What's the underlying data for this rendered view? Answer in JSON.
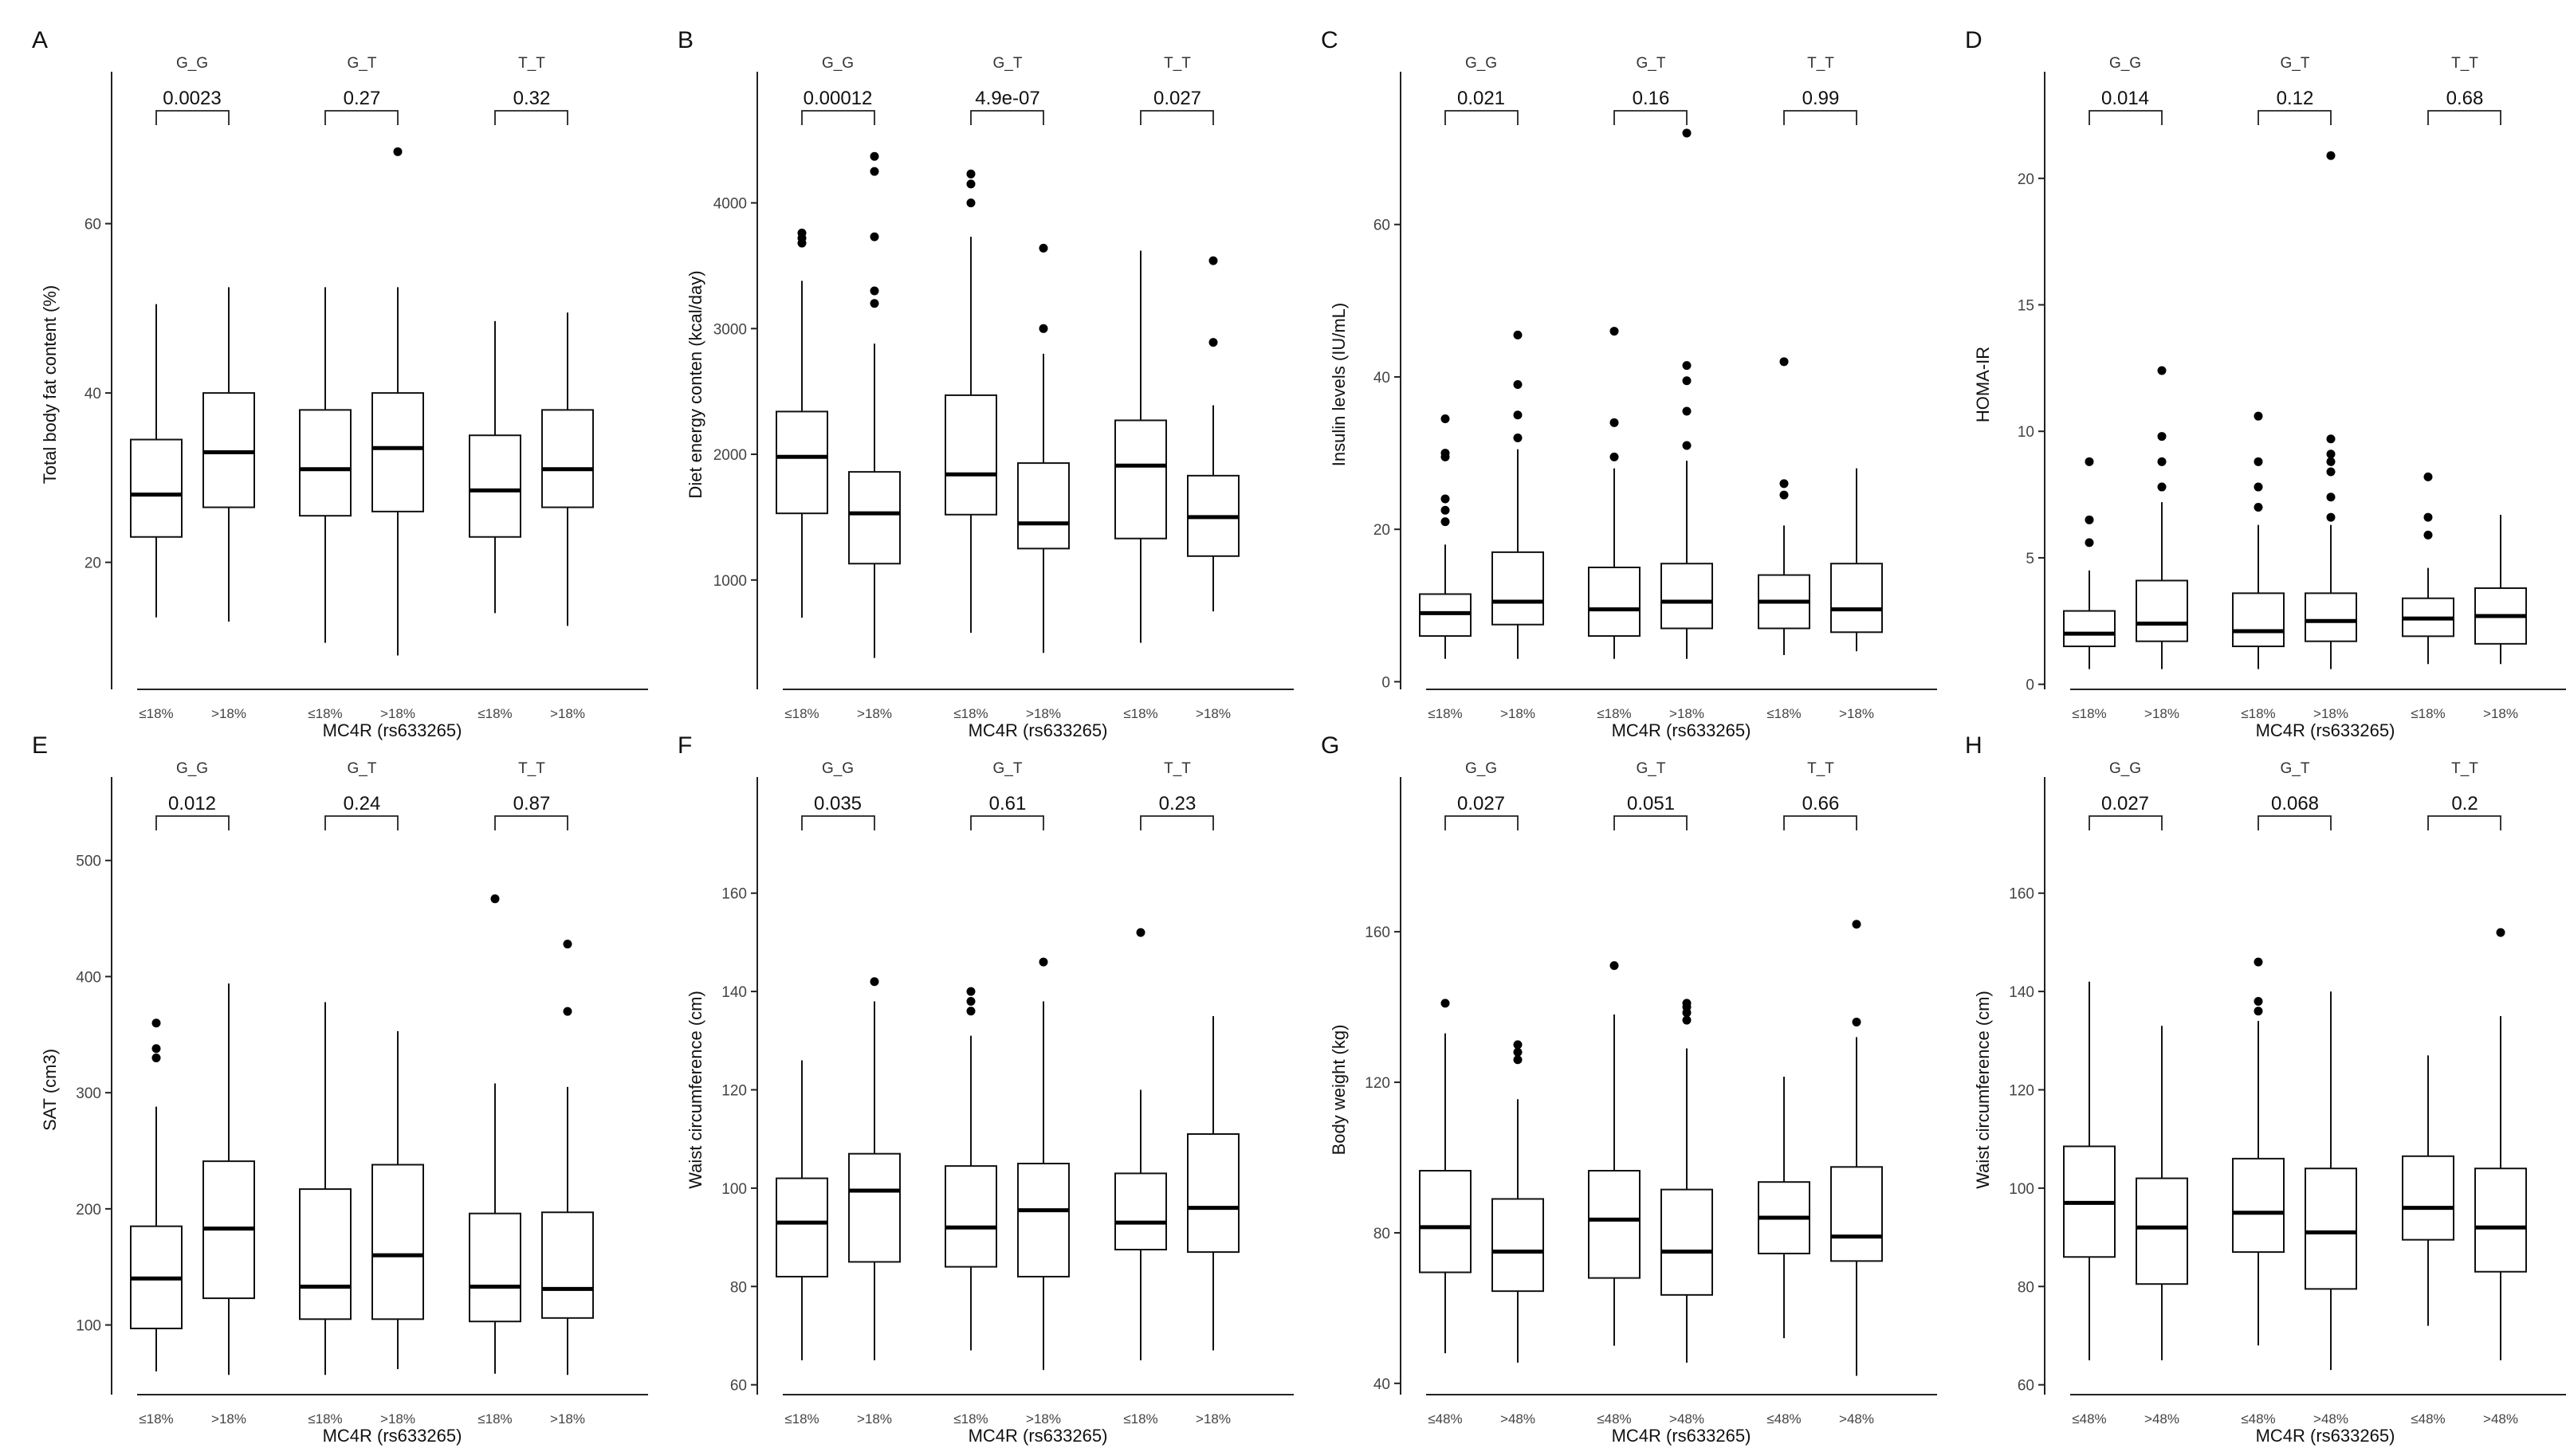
{
  "figure": {
    "xlabel": "MC4R (rs633265)",
    "groups": [
      "G_G",
      "G_T",
      "T_T"
    ]
  },
  "chart_data": [
    {
      "panel": "A",
      "type": "box",
      "ylabel": "Total body fat content (%)",
      "ylim": [
        5,
        77
      ],
      "yticks": [
        20,
        40,
        60
      ],
      "xticks": [
        "≤18%",
        ">18%"
      ],
      "pvalues": [
        "0.0023",
        "0.27",
        "0.32"
      ],
      "boxes": [
        {
          "min": 13.5,
          "q1": 23,
          "median": 28,
          "q3": 34.5,
          "max": 50.5,
          "outliers": []
        },
        {
          "min": 13,
          "q1": 26.5,
          "median": 33,
          "q3": 40,
          "max": 52.5,
          "outliers": []
        },
        {
          "min": 10.5,
          "q1": 25.5,
          "median": 31,
          "q3": 38,
          "max": 52.5,
          "outliers": []
        },
        {
          "min": 9,
          "q1": 26,
          "median": 33.5,
          "q3": 40,
          "max": 52.5,
          "outliers": [
            68.5
          ]
        },
        {
          "min": 14,
          "q1": 23,
          "median": 28.5,
          "q3": 35,
          "max": 48.5,
          "outliers": []
        },
        {
          "min": 12.5,
          "q1": 26.5,
          "median": 31,
          "q3": 38,
          "max": 49.5,
          "outliers": []
        }
      ]
    },
    {
      "panel": "B",
      "type": "box",
      "ylabel": "Diet energy conten (kcal/day)",
      "ylim": [
        130,
        4980
      ],
      "yticks": [
        1000,
        2000,
        3000,
        4000
      ],
      "xticks": [
        "≤18%",
        ">18%"
      ],
      "pvalues": [
        "0.00012",
        "4.9e-07",
        "0.027"
      ],
      "boxes": [
        {
          "min": 700,
          "q1": 1530,
          "median": 1980,
          "q3": 2340,
          "max": 3380,
          "outliers": [
            3680,
            3720,
            3760
          ]
        },
        {
          "min": 380,
          "q1": 1130,
          "median": 1530,
          "q3": 1860,
          "max": 2880,
          "outliers": [
            3200,
            3300,
            3730,
            4250,
            4370
          ]
        },
        {
          "min": 580,
          "q1": 1520,
          "median": 1840,
          "q3": 2470,
          "max": 3730,
          "outliers": [
            4000,
            4150,
            4230
          ]
        },
        {
          "min": 420,
          "q1": 1250,
          "median": 1450,
          "q3": 1930,
          "max": 2800,
          "outliers": [
            3000,
            3640
          ]
        },
        {
          "min": 500,
          "q1": 1330,
          "median": 1910,
          "q3": 2270,
          "max": 3620,
          "outliers": []
        },
        {
          "min": 750,
          "q1": 1190,
          "median": 1500,
          "q3": 1830,
          "max": 2390,
          "outliers": [
            2890,
            3540
          ]
        }
      ]
    },
    {
      "panel": "C",
      "type": "box",
      "ylabel": "Insulin levels (IU/mL)",
      "ylim": [
        -1,
        79
      ],
      "yticks": [
        0,
        20,
        40,
        60
      ],
      "xticks": [
        "≤18%",
        ">18%"
      ],
      "pvalues": [
        "0.021",
        "0.16",
        "0.99"
      ],
      "boxes": [
        {
          "min": 3,
          "q1": 6,
          "median": 9,
          "q3": 11.5,
          "max": 18,
          "outliers": [
            21,
            22.5,
            24,
            29.5,
            30,
            34.5
          ]
        },
        {
          "min": 3,
          "q1": 7.5,
          "median": 10.5,
          "q3": 17,
          "max": 30.5,
          "outliers": [
            32,
            35,
            39,
            45.5
          ]
        },
        {
          "min": 3,
          "q1": 6,
          "median": 9.5,
          "q3": 15,
          "max": 28,
          "outliers": [
            29.5,
            34,
            46
          ]
        },
        {
          "min": 3,
          "q1": 7,
          "median": 10.5,
          "q3": 15.5,
          "max": 29,
          "outliers": [
            31,
            35.5,
            39.5,
            41.5,
            72
          ]
        },
        {
          "min": 3.5,
          "q1": 7,
          "median": 10.5,
          "q3": 14,
          "max": 20.5,
          "outliers": [
            24.5,
            26,
            42
          ]
        },
        {
          "min": 4,
          "q1": 6.5,
          "median": 9.5,
          "q3": 15.5,
          "max": 28,
          "outliers": []
        }
      ]
    },
    {
      "panel": "D",
      "type": "box",
      "ylabel": "HOMA-IR",
      "ylim": [
        -0.2,
        23.9
      ],
      "yticks": [
        0,
        5,
        10,
        15,
        20
      ],
      "xticks": [
        "≤18%",
        ">18%"
      ],
      "pvalues": [
        "0.014",
        "0.12",
        "0.68"
      ],
      "boxes": [
        {
          "min": 0.6,
          "q1": 1.5,
          "median": 2,
          "q3": 2.9,
          "max": 4.5,
          "outliers": [
            5.6,
            6.5,
            8.8
          ]
        },
        {
          "min": 0.6,
          "q1": 1.7,
          "median": 2.4,
          "q3": 4.1,
          "max": 7.2,
          "outliers": [
            7.8,
            8.8,
            9.8,
            12.4
          ]
        },
        {
          "min": 0.6,
          "q1": 1.5,
          "median": 2.1,
          "q3": 3.6,
          "max": 6.3,
          "outliers": [
            7,
            7.8,
            8.8,
            10.6
          ]
        },
        {
          "min": 0.6,
          "q1": 1.7,
          "median": 2.5,
          "q3": 3.6,
          "max": 6.3,
          "outliers": [
            6.6,
            7.4,
            8.4,
            8.8,
            9.1,
            9.7,
            20.9
          ]
        },
        {
          "min": 0.8,
          "q1": 1.9,
          "median": 2.6,
          "q3": 3.4,
          "max": 4.6,
          "outliers": [
            5.9,
            6.6,
            8.2
          ]
        },
        {
          "min": 0.8,
          "q1": 1.6,
          "median": 2.7,
          "q3": 3.8,
          "max": 6.7,
          "outliers": []
        }
      ]
    },
    {
      "panel": "E",
      "type": "box",
      "ylabel": "SAT (cm3)",
      "ylim": [
        40,
        565
      ],
      "yticks": [
        100,
        200,
        300,
        400,
        500
      ],
      "xticks": [
        "≤18%",
        ">18%"
      ],
      "pvalues": [
        "0.012",
        "0.24",
        "0.87"
      ],
      "boxes": [
        {
          "min": 60,
          "q1": 97,
          "median": 140,
          "q3": 185,
          "max": 288,
          "outliers": [
            330,
            338,
            360
          ]
        },
        {
          "min": 57,
          "q1": 123,
          "median": 183,
          "q3": 241,
          "max": 394,
          "outliers": []
        },
        {
          "min": 57,
          "q1": 105,
          "median": 133,
          "q3": 217,
          "max": 378,
          "outliers": []
        },
        {
          "min": 62,
          "q1": 105,
          "median": 160,
          "q3": 238,
          "max": 353,
          "outliers": []
        },
        {
          "min": 58,
          "q1": 103,
          "median": 133,
          "q3": 196,
          "max": 308,
          "outliers": [
            467
          ]
        },
        {
          "min": 57,
          "q1": 106,
          "median": 131,
          "q3": 197,
          "max": 305,
          "outliers": [
            370,
            428
          ]
        }
      ]
    },
    {
      "panel": "F",
      "type": "box",
      "ylabel": "Waist circumference (cm)",
      "ylim": [
        58,
        182
      ],
      "yticks": [
        60,
        80,
        100,
        120,
        140,
        160
      ],
      "xticks": [
        "≤18%",
        ">18%"
      ],
      "pvalues": [
        "0.035",
        "0.61",
        "0.23"
      ],
      "boxes": [
        {
          "min": 65,
          "q1": 82,
          "median": 93,
          "q3": 102,
          "max": 126,
          "outliers": []
        },
        {
          "min": 65,
          "q1": 85,
          "median": 99.5,
          "q3": 107,
          "max": 138,
          "outliers": [
            142
          ]
        },
        {
          "min": 67,
          "q1": 84,
          "median": 92,
          "q3": 104.5,
          "max": 131,
          "outliers": [
            136,
            138,
            140
          ]
        },
        {
          "min": 63,
          "q1": 82,
          "median": 95.5,
          "q3": 105,
          "max": 138,
          "outliers": [
            146
          ]
        },
        {
          "min": 65,
          "q1": 87.5,
          "median": 93,
          "q3": 103,
          "max": 120,
          "outliers": [
            152
          ]
        },
        {
          "min": 67,
          "q1": 87,
          "median": 96,
          "q3": 111,
          "max": 135,
          "outliers": []
        }
      ]
    },
    {
      "panel": "G",
      "type": "box",
      "ylabel": "Body weight (kg)",
      "ylim": [
        37,
        199
      ],
      "yticks": [
        40,
        80,
        120,
        160
      ],
      "xticks": [
        "≤48%",
        ">48%"
      ],
      "pvalues": [
        "0.027",
        "0.051",
        "0.66"
      ],
      "boxes": [
        {
          "min": 48,
          "q1": 69.5,
          "median": 81.5,
          "q3": 96.5,
          "max": 133,
          "outliers": [
            141
          ]
        },
        {
          "min": 45.5,
          "q1": 64.5,
          "median": 75,
          "q3": 89,
          "max": 115.5,
          "outliers": [
            126,
            128,
            130
          ]
        },
        {
          "min": 50,
          "q1": 68,
          "median": 83.5,
          "q3": 96.5,
          "max": 138,
          "outliers": [
            151
          ]
        },
        {
          "min": 45.5,
          "q1": 63.5,
          "median": 75,
          "q3": 91.5,
          "max": 129,
          "outliers": [
            136.5,
            138.5,
            140,
            141
          ]
        },
        {
          "min": 52,
          "q1": 74.5,
          "median": 84,
          "q3": 93.5,
          "max": 121.5,
          "outliers": []
        },
        {
          "min": 42,
          "q1": 72.5,
          "median": 79,
          "q3": 97.5,
          "max": 132,
          "outliers": [
            136,
            162
          ]
        }
      ]
    },
    {
      "panel": "H",
      "type": "box",
      "ylabel": "Waist circumference (cm)",
      "ylim": [
        58,
        182
      ],
      "yticks": [
        60,
        80,
        100,
        120,
        140,
        160
      ],
      "xticks": [
        "≤48%",
        ">48%"
      ],
      "pvalues": [
        "0.027",
        "0.068",
        "0.2"
      ],
      "boxes": [
        {
          "min": 65,
          "q1": 86,
          "median": 97,
          "q3": 108.5,
          "max": 142,
          "outliers": []
        },
        {
          "min": 65,
          "q1": 80.5,
          "median": 92,
          "q3": 102,
          "max": 133,
          "outliers": []
        },
        {
          "min": 68,
          "q1": 87,
          "median": 95,
          "q3": 106,
          "max": 134,
          "outliers": [
            136,
            138,
            146
          ]
        },
        {
          "min": 63,
          "q1": 79.5,
          "median": 91,
          "q3": 104,
          "max": 140,
          "outliers": []
        },
        {
          "min": 72,
          "q1": 89.5,
          "median": 96,
          "q3": 106.5,
          "max": 127,
          "outliers": []
        },
        {
          "min": 65,
          "q1": 83,
          "median": 92,
          "q3": 104,
          "max": 135,
          "outliers": [
            152
          ]
        }
      ]
    }
  ]
}
